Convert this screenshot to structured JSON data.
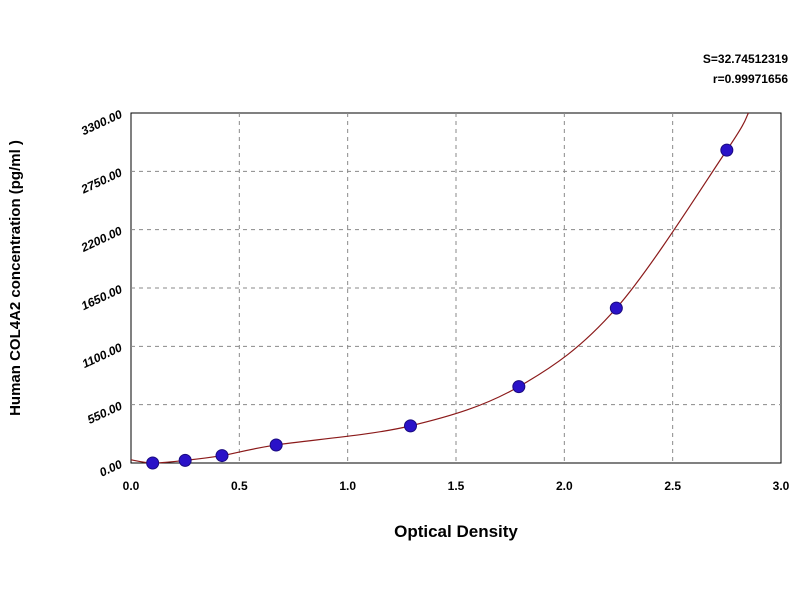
{
  "stats": {
    "s_line": "S=32.74512319",
    "r_line": "r=0.99971656"
  },
  "chart_data": {
    "type": "scatter",
    "xlabel": "Optical Density",
    "ylabel": "Human COL4A2 concentration (pg/ml )",
    "xlim": [
      0.0,
      3.0
    ],
    "ylim": [
      0,
      3300
    ],
    "x_ticks": [
      "0.0",
      "0.5",
      "1.0",
      "1.5",
      "2.0",
      "2.5",
      "3.0"
    ],
    "y_ticks": [
      "0.00",
      "550.00",
      "1100.00",
      "1650.00",
      "2200.00",
      "2750.00",
      "3300.00"
    ],
    "grid": true,
    "series": [
      {
        "points": [
          {
            "x": 0.1,
            "y": 0
          },
          {
            "x": 0.25,
            "y": 25
          },
          {
            "x": 0.42,
            "y": 70
          },
          {
            "x": 0.67,
            "y": 170
          },
          {
            "x": 1.29,
            "y": 350
          },
          {
            "x": 1.79,
            "y": 720
          },
          {
            "x": 2.24,
            "y": 1460
          },
          {
            "x": 2.75,
            "y": 2950
          }
        ],
        "marker_color": "#2a12c8",
        "curve_color": "#8b1a1a"
      }
    ]
  }
}
